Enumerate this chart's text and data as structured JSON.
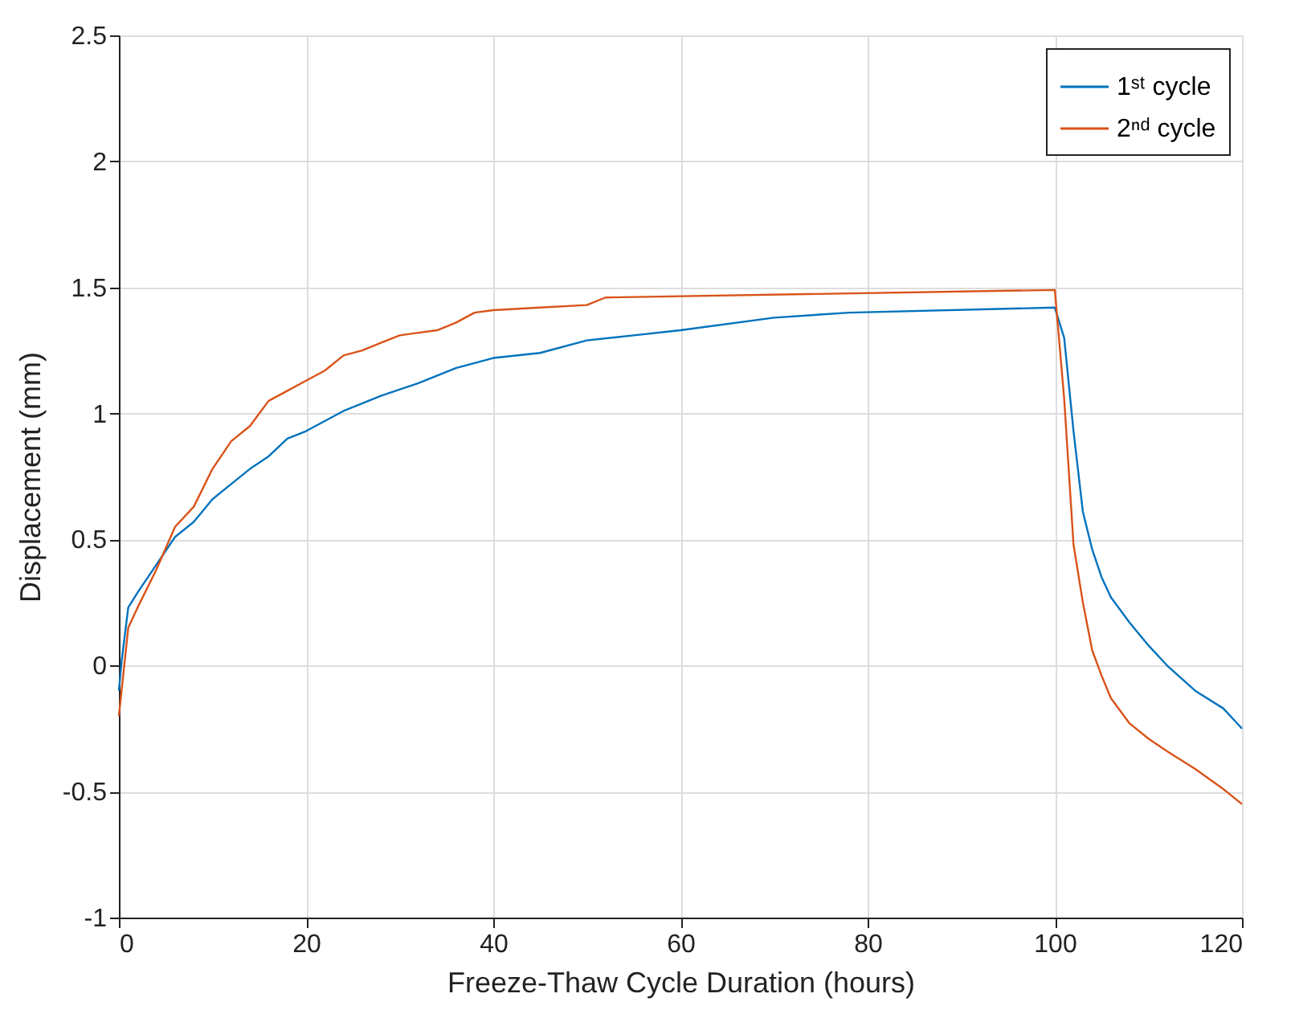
{
  "chart_data": {
    "type": "line",
    "xlabel": "Freeze-Thaw Cycle Duration (hours)",
    "ylabel": "Displacement (mm)",
    "xlim": [
      0,
      120
    ],
    "xticks": [
      0,
      20,
      40,
      60,
      80,
      100,
      120
    ],
    "ylim": [
      -1,
      2.5
    ],
    "yticks": [
      -1,
      -0.5,
      0,
      0.5,
      1,
      1.5,
      2,
      2.5
    ],
    "grid": true,
    "legend": "top right",
    "line_style": "solid",
    "marker": "none",
    "series": [
      {
        "name": "1ˢᵗ cycle",
        "color": "#0072bd",
        "x": [
          0,
          0.3,
          1,
          2,
          4,
          6,
          8,
          10,
          12,
          14,
          16,
          18,
          20,
          24,
          28,
          32,
          36,
          40,
          45,
          50,
          55,
          60,
          70,
          78,
          100,
          101,
          102,
          103,
          104,
          105,
          106,
          108,
          110,
          112,
          115,
          118,
          120
        ],
        "values": [
          -0.1,
          0.02,
          0.23,
          0.29,
          0.4,
          0.51,
          0.57,
          0.66,
          0.72,
          0.78,
          0.83,
          0.9,
          0.93,
          1.01,
          1.07,
          1.12,
          1.18,
          1.22,
          1.24,
          1.29,
          1.31,
          1.33,
          1.38,
          1.4,
          1.42,
          1.3,
          0.93,
          0.61,
          0.46,
          0.35,
          0.27,
          0.17,
          0.08,
          0.0,
          -0.1,
          -0.17,
          -0.25
        ]
      },
      {
        "name": "2ⁿᵈ cycle",
        "color": "#d95319",
        "x": [
          0,
          1,
          2,
          4,
          6,
          8,
          10,
          12,
          14,
          16,
          18,
          20,
          22,
          24,
          26,
          28,
          30,
          34,
          36,
          38,
          40,
          45,
          50,
          52,
          100,
          101,
          102,
          103,
          104,
          105,
          106,
          108,
          110,
          112,
          115,
          118,
          120
        ],
        "values": [
          -0.2,
          0.15,
          0.23,
          0.38,
          0.55,
          0.63,
          0.78,
          0.89,
          0.95,
          1.05,
          1.09,
          1.13,
          1.17,
          1.23,
          1.25,
          1.28,
          1.31,
          1.33,
          1.36,
          1.4,
          1.41,
          1.42,
          1.43,
          1.46,
          1.49,
          1.06,
          0.48,
          0.25,
          0.06,
          -0.04,
          -0.13,
          -0.23,
          -0.29,
          -0.34,
          -0.41,
          -0.49,
          -0.55
        ]
      }
    ]
  }
}
